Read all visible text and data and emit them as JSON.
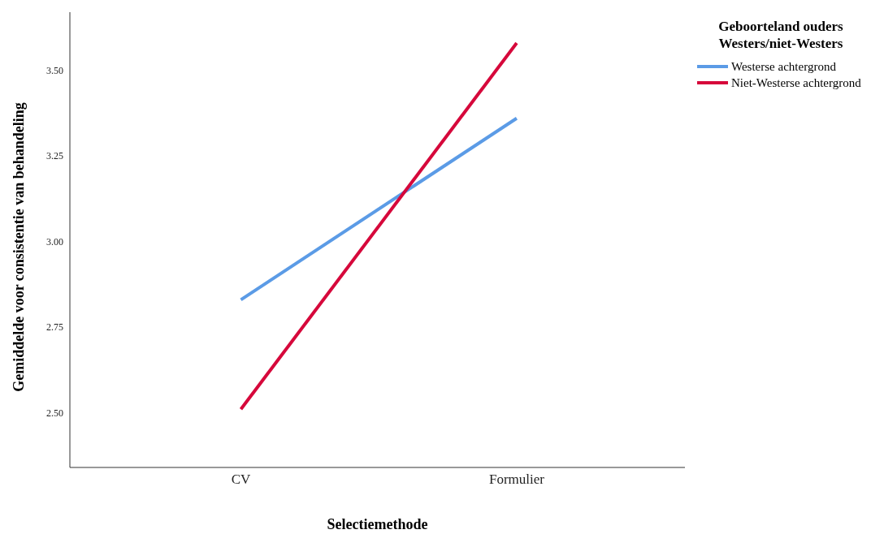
{
  "chart_data": {
    "type": "line",
    "xlabel": "Selectiemethode",
    "ylabel": "Gemiddelde voor consistentie van behandeling",
    "legend_title": "Geboorteland ouders Westers/niet-Westers",
    "categories": [
      "CV",
      "Formulier"
    ],
    "series": [
      {
        "name": "Westerse achtergrond",
        "color": "#5b9be6",
        "values": [
          2.83,
          3.36
        ]
      },
      {
        "name": "Niet-Westerse achtergrond",
        "color": "#d6083b",
        "values": [
          2.51,
          3.58
        ]
      }
    ],
    "ylim": [
      2.34,
      3.67
    ],
    "yticks": [
      {
        "value": 2.5,
        "label": "2.50"
      },
      {
        "value": 2.75,
        "label": "2.75"
      },
      {
        "value": 3,
        "label": "3.00"
      },
      {
        "value": 3.25,
        "label": "3.25"
      },
      {
        "value": 3.5,
        "label": "3.50"
      }
    ],
    "grid": false,
    "legend": "top right",
    "marker": "none",
    "line_style": "solid"
  }
}
